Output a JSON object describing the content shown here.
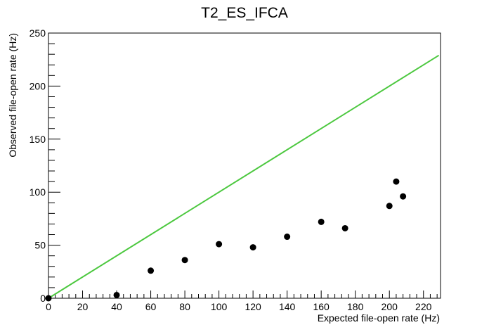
{
  "chart_data": {
    "type": "scatter",
    "title": "T2_ES_IFCA",
    "xlabel": "Expected file-open rate (Hz)",
    "ylabel": "Observed file-open rate (Hz)",
    "xlim": [
      0,
      230
    ],
    "ylim": [
      0,
      250
    ],
    "grid": false,
    "legend": "none",
    "x_ticks": [
      "0",
      "20",
      "40",
      "60",
      "80",
      "100",
      "120",
      "140",
      "160",
      "180",
      "200",
      "220"
    ],
    "y_ticks": [
      "0",
      "50",
      "100",
      "150",
      "200",
      "250"
    ],
    "series": [
      {
        "kind": "points",
        "color": "#000000",
        "points": [
          {
            "x": 0,
            "y": 0
          },
          {
            "x": 40,
            "y": 3
          },
          {
            "x": 60,
            "y": 26
          },
          {
            "x": 80,
            "y": 36
          },
          {
            "x": 100,
            "y": 51
          },
          {
            "x": 120,
            "y": 48
          },
          {
            "x": 140,
            "y": 58
          },
          {
            "x": 160,
            "y": 72
          },
          {
            "x": 174,
            "y": 66
          },
          {
            "x": 200,
            "y": 87
          },
          {
            "x": 204,
            "y": 110
          },
          {
            "x": 208,
            "y": 96
          }
        ]
      },
      {
        "kind": "line",
        "color": "#4cc83f",
        "points": [
          {
            "x": 0,
            "y": 0
          },
          {
            "x": 229,
            "y": 229
          }
        ]
      }
    ]
  }
}
